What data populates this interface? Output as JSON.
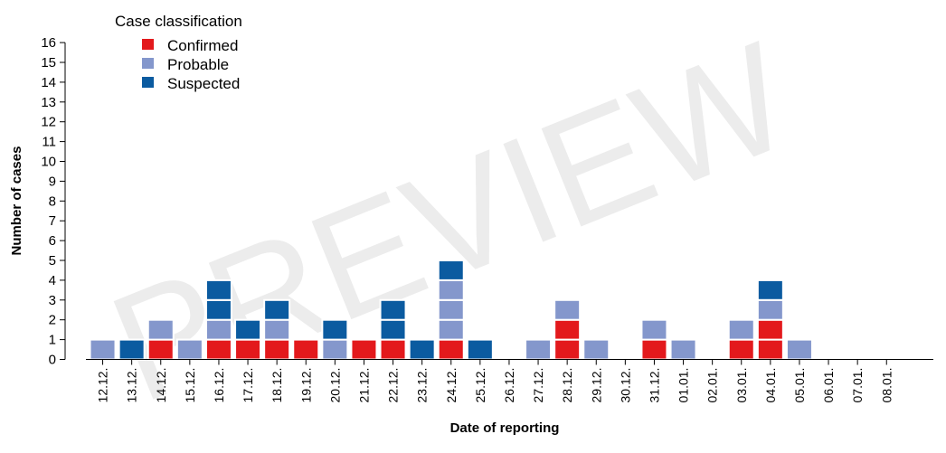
{
  "watermark": "PREVIEW",
  "chart_data": {
    "type": "bar",
    "stacked": true,
    "categories": [
      "12.12.",
      "13.12.",
      "14.12.",
      "15.12.",
      "16.12.",
      "17.12.",
      "18.12.",
      "19.12.",
      "20.12.",
      "21.12.",
      "22.12.",
      "23.12.",
      "24.12.",
      "25.12.",
      "26.12.",
      "27.12.",
      "28.12.",
      "29.12.",
      "30.12.",
      "31.12.",
      "01.01.",
      "02.01.",
      "03.01.",
      "04.01.",
      "05.01.",
      "06.01.",
      "07.01.",
      "08.01."
    ],
    "series": [
      {
        "name": "Confirmed",
        "color": "#e3191c",
        "values": [
          0,
          0,
          1,
          0,
          1,
          1,
          1,
          1,
          0,
          1,
          1,
          0,
          1,
          0,
          0,
          0,
          2,
          0,
          0,
          1,
          0,
          0,
          1,
          2,
          0,
          0,
          0,
          0
        ]
      },
      {
        "name": "Probable",
        "color": "#8497cc",
        "values": [
          1,
          0,
          1,
          1,
          1,
          0,
          1,
          0,
          1,
          0,
          0,
          0,
          3,
          0,
          0,
          1,
          1,
          1,
          0,
          1,
          1,
          0,
          1,
          1,
          1,
          0,
          0,
          0
        ]
      },
      {
        "name": "Suspected",
        "color": "#0b5ba0",
        "values": [
          0,
          1,
          0,
          0,
          2,
          1,
          1,
          0,
          1,
          0,
          2,
          1,
          1,
          1,
          0,
          0,
          0,
          0,
          0,
          0,
          0,
          0,
          0,
          1,
          0,
          0,
          0,
          0
        ]
      }
    ],
    "legend_title": "Case classification",
    "legend_position": "top-left",
    "xlabel": "Date of reporting",
    "ylabel": "Number of cases",
    "ylim": [
      0,
      16
    ],
    "yticks": [
      0,
      1,
      2,
      3,
      4,
      5,
      6,
      7,
      8,
      9,
      10,
      11,
      12,
      13,
      14,
      15,
      16
    ],
    "grid": false
  }
}
